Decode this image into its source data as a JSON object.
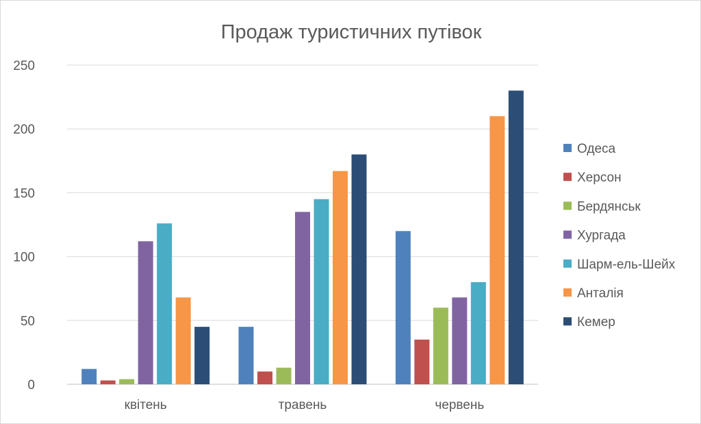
{
  "chart_data": {
    "type": "bar",
    "title": "Продаж туристичних путівок",
    "xlabel": "",
    "ylabel": "",
    "ylim": [
      0,
      250
    ],
    "yticks": [
      0,
      50,
      100,
      150,
      200,
      250
    ],
    "grid": true,
    "legend_position": "right",
    "categories": [
      "квітень",
      "травень",
      "червень"
    ],
    "series": [
      {
        "name": "Одеса",
        "color": "#4f81bd",
        "values": [
          12,
          45,
          120
        ]
      },
      {
        "name": "Херсон",
        "color": "#c0504d",
        "values": [
          3,
          10,
          35
        ]
      },
      {
        "name": "Бердянськ",
        "color": "#9bbb59",
        "values": [
          4,
          13,
          60
        ]
      },
      {
        "name": "Хургада",
        "color": "#8064a2",
        "values": [
          112,
          135,
          68
        ]
      },
      {
        "name": "Шарм-ель-Шейх",
        "color": "#4bacc6",
        "values": [
          126,
          145,
          80
        ]
      },
      {
        "name": "Анталія",
        "color": "#f79646",
        "values": [
          68,
          167,
          210
        ]
      },
      {
        "name": "Кемер",
        "color": "#2c4d75",
        "values": [
          45,
          180,
          230
        ]
      }
    ]
  }
}
